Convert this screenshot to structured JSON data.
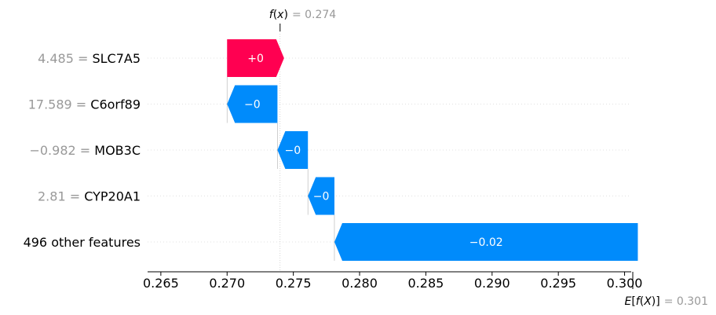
{
  "chart_data": {
    "type": "waterfall",
    "fx": {
      "prefix": "f",
      "open": "(",
      "var": "x",
      "close": ")",
      "eq_value": "= 0.274",
      "value": 0.274
    },
    "efx": {
      "prefix": "E",
      "open1": "[",
      "f": "f",
      "open2": "(",
      "var": "X",
      "close2": ")",
      "close1": "]",
      "eq_value": "= 0.301",
      "value": 0.301
    },
    "xlim": [
      0.264,
      0.3005
    ],
    "ticks": [
      0.265,
      0.27,
      0.275,
      0.28,
      0.285,
      0.29,
      0.295,
      0.3
    ],
    "tick_labels": [
      "0.265",
      "0.270",
      "0.275",
      "0.280",
      "0.285",
      "0.290",
      "0.295",
      "0.300"
    ],
    "features": [
      {
        "value_label": "4.485 =",
        "name": "SLC7A5",
        "start": 0.27,
        "end": 0.2743,
        "bar_label": "+0",
        "sign": "positive"
      },
      {
        "value_label": "17.589 =",
        "name": "C6orf89",
        "start": 0.2738,
        "end": 0.27,
        "bar_label": "−0",
        "sign": "negative"
      },
      {
        "value_label": "−0.982 =",
        "name": "MOB3C",
        "start": 0.2761,
        "end": 0.2738,
        "bar_label": "−0",
        "sign": "negative"
      },
      {
        "value_label": "2.81 =",
        "name": "CYP20A1",
        "start": 0.2781,
        "end": 0.2761,
        "bar_label": "−0",
        "sign": "negative"
      },
      {
        "value_label": "",
        "name": "496 other features",
        "start": 0.301,
        "end": 0.2781,
        "bar_label": "−0.02",
        "sign": "negative"
      }
    ],
    "colors": {
      "positive": "#ff0051",
      "negative": "#008bfb",
      "grid": "#e0e0e0",
      "connector": "#bbbbbb"
    }
  }
}
